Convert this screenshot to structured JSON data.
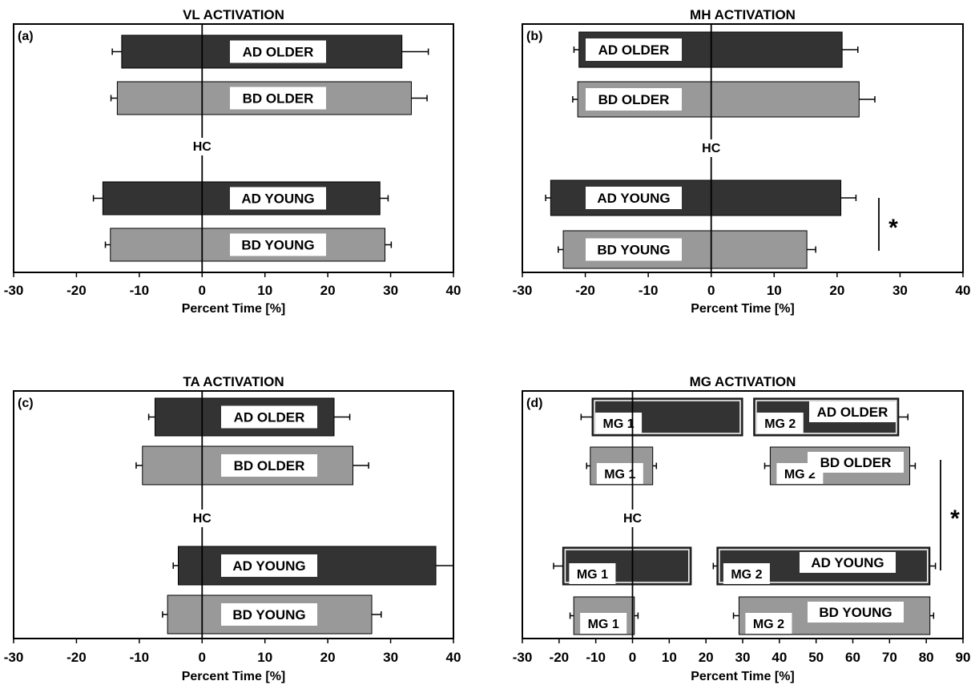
{
  "chart_data": [
    {
      "type": "bar",
      "orientation": "horizontal",
      "title": "VL ACTIVATION",
      "panel_label": "(a)",
      "xlabel": "Percent Time [%]",
      "xlim": [
        -30,
        40
      ],
      "xticks": [
        "-30",
        "-20",
        "-10",
        "0",
        "10",
        "20",
        "30",
        "40"
      ],
      "center_label": "HC",
      "bars": [
        {
          "label": "AD OLDER",
          "start": -12.8,
          "end": 31.8,
          "err_low": 1.5,
          "err_high": 4.2,
          "color": "#333333"
        },
        {
          "label": "BD OLDER",
          "start": -13.5,
          "end": 33.3,
          "err_low": 1.0,
          "err_high": 2.5,
          "color": "#999999"
        },
        {
          "label": "AD YOUNG",
          "start": -15.8,
          "end": 28.3,
          "err_low": 1.5,
          "err_high": 1.3,
          "color": "#333333"
        },
        {
          "label": "BD YOUNG",
          "start": -14.6,
          "end": 29.1,
          "err_low": 0.8,
          "err_high": 1.0,
          "color": "#999999"
        }
      ]
    },
    {
      "type": "bar",
      "orientation": "horizontal",
      "title": "MH ACTIVATION",
      "panel_label": "(b)",
      "xlabel": "Percent Time [%]",
      "xlim": [
        -30,
        40
      ],
      "xticks": [
        "-30",
        "-20",
        "-10",
        "0",
        "10",
        "20",
        "30",
        "40"
      ],
      "center_label": "HC",
      "significance": "*",
      "bars": [
        {
          "label": "AD OLDER",
          "start": -21.0,
          "end": 20.8,
          "err_low": 0.8,
          "err_high": 2.5,
          "color": "#333333"
        },
        {
          "label": "BD OLDER",
          "start": -21.2,
          "end": 23.5,
          "err_low": 0.8,
          "err_high": 2.5,
          "color": "#999999"
        },
        {
          "label": "AD YOUNG",
          "start": -25.5,
          "end": 20.6,
          "err_low": 0.8,
          "err_high": 2.4,
          "color": "#333333"
        },
        {
          "label": "BD YOUNG",
          "start": -23.5,
          "end": 15.2,
          "err_low": 0.8,
          "err_high": 1.4,
          "color": "#999999"
        }
      ]
    },
    {
      "type": "bar",
      "orientation": "horizontal",
      "title": "TA ACTIVATION",
      "panel_label": "(c)",
      "xlabel": "Percent Time [%]",
      "xlim": [
        -30,
        40
      ],
      "xticks": [
        "-30",
        "-20",
        "-10",
        "0",
        "10",
        "20",
        "30",
        "40"
      ],
      "center_label": "HC",
      "bars": [
        {
          "label": "AD OLDER",
          "start": -7.5,
          "end": 21.0,
          "err_low": 1.0,
          "err_high": 2.5,
          "color": "#333333"
        },
        {
          "label": "BD OLDER",
          "start": -9.5,
          "end": 24.0,
          "err_low": 1.0,
          "err_high": 2.5,
          "color": "#999999"
        },
        {
          "label": "AD YOUNG",
          "start": -3.8,
          "end": 37.2,
          "err_low": 0.8,
          "err_high": 2.8,
          "color": "#333333"
        },
        {
          "label": "BD YOUNG",
          "start": -5.5,
          "end": 27.0,
          "err_low": 0.8,
          "err_high": 1.5,
          "color": "#999999"
        }
      ]
    },
    {
      "type": "bar",
      "orientation": "horizontal",
      "title": "MG ACTIVATION",
      "panel_label": "(d)",
      "xlabel": "Percent Time [%]",
      "xlim": [
        -30,
        90
      ],
      "xticks": [
        "-30",
        "-20",
        "-10",
        "0",
        "10",
        "20",
        "30",
        "40",
        "50",
        "60",
        "70",
        "80",
        "90"
      ],
      "center_label": "HC",
      "significance": "*",
      "groups": [
        {
          "label": "AD OLDER",
          "color": "#333333",
          "segments": [
            {
              "name": "MG 1",
              "start": -11.0,
              "end": 30.0,
              "err_low": 3.0,
              "err_high": 0
            },
            {
              "name": "MG 2",
              "start": 33.0,
              "end": 72.5,
              "err_low": 0,
              "err_high": 2.5
            }
          ]
        },
        {
          "label": "BD OLDER",
          "color": "#999999",
          "segments": [
            {
              "name": "MG 1",
              "start": -11.5,
              "end": 5.5,
              "err_low": 1.0,
              "err_high": 1.0
            },
            {
              "name": "MG 2",
              "start": 37.5,
              "end": 75.5,
              "err_low": 1.5,
              "err_high": 1.5
            }
          ]
        },
        {
          "label": "AD YOUNG",
          "color": "#333333",
          "segments": [
            {
              "name": "MG 1",
              "start": -19.0,
              "end": 16.0,
              "err_low": 2.5,
              "err_high": 0
            },
            {
              "name": "MG 2",
              "start": 23.0,
              "end": 81.0,
              "err_low": 1.0,
              "err_high": 1.5
            }
          ]
        },
        {
          "label": "BD YOUNG",
          "color": "#999999",
          "segments": [
            {
              "name": "MG 1",
              "start": -16.0,
              "end": 0.5,
              "err_low": 1.0,
              "err_high": 1.0
            },
            {
              "name": "MG 2",
              "start": 29.0,
              "end": 81.0,
              "err_low": 1.5,
              "err_high": 1.0
            }
          ]
        }
      ]
    }
  ]
}
